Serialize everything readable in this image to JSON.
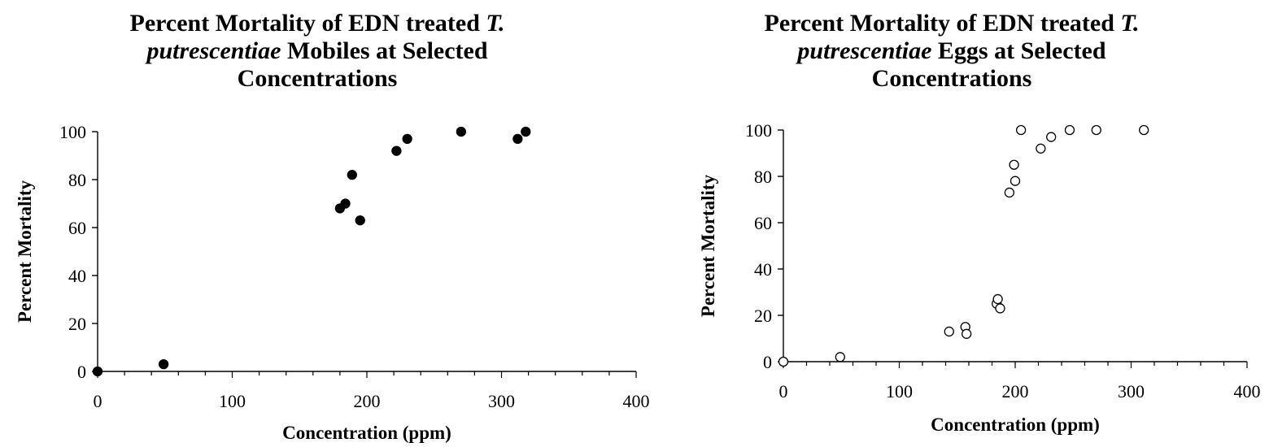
{
  "chart_data": [
    {
      "type": "scatter",
      "title_parts": {
        "line1_text": "Percent Mortality of EDN treated ",
        "line1_italic": "T.",
        "line2_italic": "putrescentiae",
        "line2_text": " Mobiles at Selected",
        "line3_text": "Concentrations"
      },
      "xlabel": "Concentration (ppm)",
      "ylabel": "Percent Mortality",
      "xlim": [
        0,
        400
      ],
      "ylim": [
        0,
        100
      ],
      "xticks": [
        "0",
        "100",
        "200",
        "300",
        "400"
      ],
      "yticks": [
        "0",
        "20",
        "40",
        "60",
        "80",
        "100"
      ],
      "marker": "filled",
      "marker_color": "#000000",
      "grid": false,
      "points": [
        {
          "x": 0,
          "y": 0
        },
        {
          "x": 49,
          "y": 3
        },
        {
          "x": 180,
          "y": 68
        },
        {
          "x": 184,
          "y": 70
        },
        {
          "x": 189,
          "y": 82
        },
        {
          "x": 195,
          "y": 63
        },
        {
          "x": 222,
          "y": 92
        },
        {
          "x": 230,
          "y": 97
        },
        {
          "x": 270,
          "y": 100
        },
        {
          "x": 312,
          "y": 97
        },
        {
          "x": 318,
          "y": 100
        }
      ]
    },
    {
      "type": "scatter",
      "title_parts": {
        "line1_text": "Percent Mortality of EDN treated ",
        "line1_italic": "T.",
        "line2_italic": "putrescentiae",
        "line2_text": " Eggs at Selected",
        "line3_text": "Concentrations"
      },
      "xlabel": "Concentration (ppm)",
      "ylabel": "Percent Mortality",
      "xlim": [
        0,
        400
      ],
      "ylim": [
        0,
        100
      ],
      "xticks": [
        "0",
        "100",
        "200",
        "300",
        "400"
      ],
      "yticks": [
        "0",
        "20",
        "40",
        "60",
        "80",
        "100"
      ],
      "marker": "hollow",
      "marker_color": "#000000",
      "grid": false,
      "points": [
        {
          "x": 0,
          "y": 0
        },
        {
          "x": 49,
          "y": 2
        },
        {
          "x": 143,
          "y": 13
        },
        {
          "x": 157,
          "y": 15
        },
        {
          "x": 158,
          "y": 12
        },
        {
          "x": 184,
          "y": 25
        },
        {
          "x": 185,
          "y": 27
        },
        {
          "x": 187,
          "y": 23
        },
        {
          "x": 195,
          "y": 73
        },
        {
          "x": 199,
          "y": 85
        },
        {
          "x": 200,
          "y": 78
        },
        {
          "x": 205,
          "y": 100
        },
        {
          "x": 222,
          "y": 92
        },
        {
          "x": 231,
          "y": 97
        },
        {
          "x": 247,
          "y": 100
        },
        {
          "x": 270,
          "y": 100
        },
        {
          "x": 311,
          "y": 100
        }
      ]
    }
  ]
}
